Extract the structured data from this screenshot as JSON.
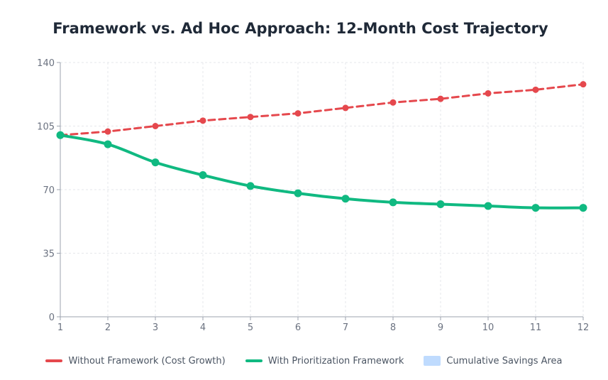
{
  "chart_data": {
    "type": "line",
    "title": "Framework vs. Ad Hoc Approach: 12-Month Cost Trajectory",
    "x": [
      1,
      2,
      3,
      4,
      5,
      6,
      7,
      8,
      9,
      10,
      11,
      12
    ],
    "xlabel": "",
    "ylabel": "",
    "ylim": [
      0,
      140
    ],
    "yticks": [
      0,
      35,
      70,
      105,
      140
    ],
    "grid": true,
    "legend_position": "bottom",
    "series": [
      {
        "name": "Without Framework (Cost Growth)",
        "values": [
          100,
          102,
          105,
          108,
          110,
          112,
          115,
          118,
          120,
          123,
          125,
          128
        ],
        "color": "#e5484d",
        "style": "dashed"
      },
      {
        "name": "With Prioritization Framework",
        "values": [
          100,
          95,
          85,
          78,
          72,
          68,
          65,
          63,
          62,
          61,
          60,
          60
        ],
        "color": "#10b981",
        "style": "solid"
      }
    ],
    "area_legend": {
      "name": "Cumulative Savings Area",
      "color": "#bfdbfe"
    }
  }
}
